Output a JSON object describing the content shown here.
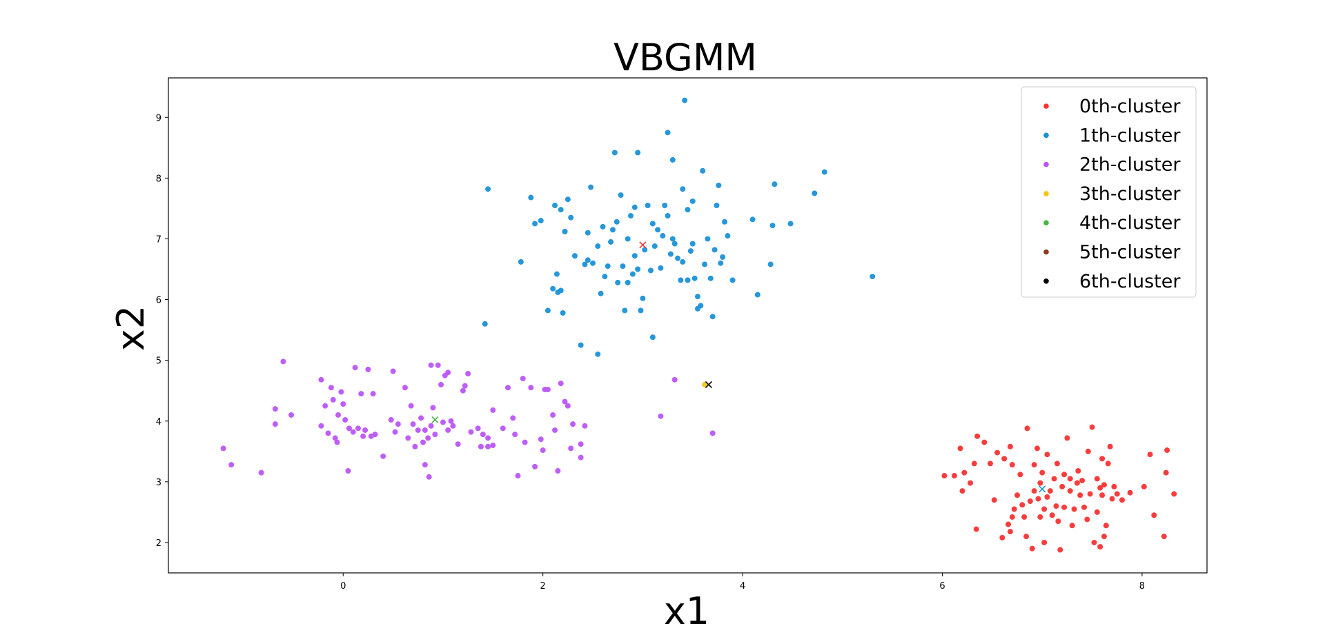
{
  "chart_data": {
    "type": "scatter",
    "title": "VBGMM",
    "xlabel": "x1",
    "ylabel": "x2",
    "xlim": [
      -1.75,
      8.65
    ],
    "ylim": [
      1.5,
      9.65
    ],
    "xticks": [
      0,
      2,
      4,
      6,
      8
    ],
    "yticks": [
      2,
      3,
      4,
      5,
      6,
      7,
      8,
      9
    ],
    "grid": false,
    "legend_position": "top-right",
    "series": [
      {
        "name": "0th-cluster",
        "color": "#f53333",
        "points": [
          [
            6.02,
            3.1
          ],
          [
            6.12,
            3.1
          ],
          [
            6.18,
            3.55
          ],
          [
            6.2,
            2.85
          ],
          [
            6.22,
            3.15
          ],
          [
            6.28,
            2.98
          ],
          [
            6.32,
            3.3
          ],
          [
            6.34,
            2.22
          ],
          [
            6.35,
            3.75
          ],
          [
            6.42,
            3.65
          ],
          [
            6.48,
            3.3
          ],
          [
            6.52,
            2.7
          ],
          [
            6.55,
            3.48
          ],
          [
            6.6,
            2.08
          ],
          [
            6.62,
            3.38
          ],
          [
            6.66,
            2.3
          ],
          [
            6.68,
            2.18
          ],
          [
            6.68,
            3.58
          ],
          [
            6.7,
            3.28
          ],
          [
            6.72,
            2.55
          ],
          [
            6.75,
            2.78
          ],
          [
            6.78,
            3.12
          ],
          [
            6.8,
            2.62
          ],
          [
            6.82,
            2.42
          ],
          [
            6.84,
            2.1
          ],
          [
            6.85,
            3.88
          ],
          [
            6.88,
            2.68
          ],
          [
            6.9,
            1.9
          ],
          [
            6.92,
            2.85
          ],
          [
            6.92,
            3.28
          ],
          [
            6.95,
            3.55
          ],
          [
            6.96,
            2.72
          ],
          [
            6.98,
            2.42
          ],
          [
            7.0,
            3.15
          ],
          [
            7.02,
            2.0
          ],
          [
            7.02,
            2.55
          ],
          [
            7.05,
            3.45
          ],
          [
            7.05,
            2.75
          ],
          [
            7.08,
            2.85
          ],
          [
            7.1,
            2.45
          ],
          [
            7.12,
            3.05
          ],
          [
            7.14,
            2.6
          ],
          [
            7.15,
            3.3
          ],
          [
            7.16,
            2.35
          ],
          [
            7.18,
            1.88
          ],
          [
            7.2,
            2.92
          ],
          [
            7.22,
            3.12
          ],
          [
            7.22,
            2.58
          ],
          [
            7.25,
            3.72
          ],
          [
            7.28,
            2.85
          ],
          [
            7.28,
            3.05
          ],
          [
            7.3,
            2.28
          ],
          [
            7.32,
            2.55
          ],
          [
            7.35,
            2.98
          ],
          [
            7.36,
            3.18
          ],
          [
            7.38,
            2.78
          ],
          [
            7.4,
            3.02
          ],
          [
            7.42,
            2.58
          ],
          [
            7.45,
            2.38
          ],
          [
            7.46,
            3.5
          ],
          [
            7.48,
            2.8
          ],
          [
            7.5,
            3.9
          ],
          [
            7.52,
            2.0
          ],
          [
            7.55,
            3.05
          ],
          [
            7.55,
            2.5
          ],
          [
            7.58,
            2.9
          ],
          [
            7.6,
            2.78
          ],
          [
            7.6,
            3.38
          ],
          [
            7.62,
            2.1
          ],
          [
            7.62,
            2.95
          ],
          [
            7.64,
            2.28
          ],
          [
            7.66,
            3.3
          ],
          [
            7.68,
            3.58
          ],
          [
            7.7,
            2.72
          ],
          [
            7.72,
            2.92
          ],
          [
            7.75,
            2.8
          ],
          [
            7.8,
            2.7
          ],
          [
            7.88,
            2.82
          ],
          [
            8.02,
            2.92
          ],
          [
            8.08,
            3.45
          ],
          [
            8.12,
            2.45
          ],
          [
            8.22,
            2.1
          ],
          [
            8.24,
            3.15
          ],
          [
            8.25,
            3.52
          ],
          [
            8.32,
            2.8
          ],
          [
            7.58,
            1.93
          ],
          [
            6.98,
            2.98
          ],
          [
            6.7,
            2.42
          ]
        ]
      },
      {
        "name": "1th-cluster",
        "color": "#1a91d6",
        "points": [
          [
            1.42,
            5.6
          ],
          [
            1.45,
            7.82
          ],
          [
            1.78,
            6.62
          ],
          [
            1.88,
            7.68
          ],
          [
            1.92,
            7.25
          ],
          [
            1.98,
            7.3
          ],
          [
            2.05,
            5.82
          ],
          [
            2.1,
            6.18
          ],
          [
            2.12,
            7.55
          ],
          [
            2.14,
            6.42
          ],
          [
            2.15,
            6.12
          ],
          [
            2.18,
            7.48
          ],
          [
            2.18,
            6.15
          ],
          [
            2.2,
            5.78
          ],
          [
            2.22,
            7.12
          ],
          [
            2.25,
            7.65
          ],
          [
            2.28,
            7.35
          ],
          [
            2.32,
            6.72
          ],
          [
            2.38,
            5.25
          ],
          [
            2.42,
            6.58
          ],
          [
            2.45,
            7.1
          ],
          [
            2.45,
            6.65
          ],
          [
            2.48,
            7.85
          ],
          [
            2.5,
            6.6
          ],
          [
            2.55,
            6.88
          ],
          [
            2.55,
            5.1
          ],
          [
            2.58,
            6.1
          ],
          [
            2.6,
            7.2
          ],
          [
            2.62,
            6.38
          ],
          [
            2.65,
            6.55
          ],
          [
            2.68,
            6.95
          ],
          [
            2.7,
            7.15
          ],
          [
            2.72,
            8.42
          ],
          [
            2.74,
            7.28
          ],
          [
            2.75,
            6.28
          ],
          [
            2.78,
            7.72
          ],
          [
            2.8,
            6.55
          ],
          [
            2.82,
            5.82
          ],
          [
            2.85,
            7.0
          ],
          [
            2.85,
            6.28
          ],
          [
            2.88,
            7.38
          ],
          [
            2.9,
            6.42
          ],
          [
            2.92,
            7.52
          ],
          [
            2.95,
            8.42
          ],
          [
            2.95,
            6.5
          ],
          [
            2.98,
            5.82
          ],
          [
            3.0,
            6.02
          ],
          [
            3.02,
            6.82
          ],
          [
            3.05,
            7.55
          ],
          [
            3.08,
            6.48
          ],
          [
            3.1,
            7.25
          ],
          [
            3.1,
            5.38
          ],
          [
            3.12,
            6.88
          ],
          [
            3.15,
            7.15
          ],
          [
            3.18,
            6.52
          ],
          [
            3.2,
            7.05
          ],
          [
            3.22,
            7.55
          ],
          [
            3.25,
            8.75
          ],
          [
            3.28,
            6.75
          ],
          [
            3.3,
            7.0
          ],
          [
            3.3,
            8.3
          ],
          [
            3.32,
            6.92
          ],
          [
            3.35,
            6.68
          ],
          [
            3.38,
            6.32
          ],
          [
            3.4,
            7.82
          ],
          [
            3.42,
            9.28
          ],
          [
            3.45,
            6.32
          ],
          [
            3.45,
            7.48
          ],
          [
            3.48,
            6.8
          ],
          [
            3.5,
            7.62
          ],
          [
            3.5,
            6.92
          ],
          [
            3.52,
            6.35
          ],
          [
            3.55,
            5.85
          ],
          [
            3.55,
            6.05
          ],
          [
            3.58,
            5.9
          ],
          [
            3.6,
            8.12
          ],
          [
            3.62,
            6.58
          ],
          [
            3.65,
            7.0
          ],
          [
            3.68,
            6.35
          ],
          [
            3.7,
            5.72
          ],
          [
            3.72,
            6.82
          ],
          [
            3.74,
            7.55
          ],
          [
            3.76,
            7.88
          ],
          [
            3.78,
            6.6
          ],
          [
            3.8,
            6.7
          ],
          [
            3.82,
            7.28
          ],
          [
            3.85,
            7.05
          ],
          [
            3.9,
            6.32
          ],
          [
            4.1,
            7.32
          ],
          [
            4.15,
            6.08
          ],
          [
            4.28,
            6.58
          ],
          [
            4.3,
            7.22
          ],
          [
            4.32,
            7.9
          ],
          [
            4.48,
            7.25
          ],
          [
            4.72,
            7.75
          ],
          [
            4.82,
            8.1
          ],
          [
            5.3,
            6.38
          ],
          [
            3.25,
            7.38
          ],
          [
            3.4,
            6.62
          ],
          [
            2.92,
            6.72
          ]
        ]
      },
      {
        "name": "2th-cluster",
        "color": "#bb55f7",
        "points": [
          [
            -1.2,
            3.55
          ],
          [
            -1.12,
            3.28
          ],
          [
            -0.82,
            3.15
          ],
          [
            -0.68,
            3.95
          ],
          [
            -0.68,
            4.2
          ],
          [
            -0.6,
            4.98
          ],
          [
            -0.52,
            4.1
          ],
          [
            -0.22,
            4.68
          ],
          [
            -0.22,
            3.92
          ],
          [
            -0.18,
            4.25
          ],
          [
            -0.15,
            3.8
          ],
          [
            -0.12,
            4.55
          ],
          [
            -0.1,
            4.35
          ],
          [
            -0.08,
            3.72
          ],
          [
            -0.06,
            3.65
          ],
          [
            -0.05,
            4.1
          ],
          [
            -0.02,
            4.48
          ],
          [
            0.0,
            4.28
          ],
          [
            0.02,
            4.02
          ],
          [
            0.05,
            3.18
          ],
          [
            0.06,
            3.88
          ],
          [
            0.1,
            3.82
          ],
          [
            0.12,
            4.88
          ],
          [
            0.15,
            3.88
          ],
          [
            0.18,
            4.45
          ],
          [
            0.2,
            3.75
          ],
          [
            0.22,
            3.85
          ],
          [
            0.25,
            4.85
          ],
          [
            0.28,
            3.75
          ],
          [
            0.3,
            4.45
          ],
          [
            0.32,
            3.78
          ],
          [
            0.4,
            3.42
          ],
          [
            0.48,
            4.02
          ],
          [
            0.5,
            4.82
          ],
          [
            0.52,
            3.82
          ],
          [
            0.55,
            3.95
          ],
          [
            0.62,
            4.55
          ],
          [
            0.65,
            3.72
          ],
          [
            0.68,
            4.25
          ],
          [
            0.7,
            3.95
          ],
          [
            0.72,
            3.58
          ],
          [
            0.75,
            3.85
          ],
          [
            0.78,
            4.05
          ],
          [
            0.8,
            3.65
          ],
          [
            0.82,
            3.28
          ],
          [
            0.82,
            3.85
          ],
          [
            0.85,
            3.72
          ],
          [
            0.86,
            3.08
          ],
          [
            0.88,
            4.92
          ],
          [
            0.88,
            3.92
          ],
          [
            0.9,
            4.22
          ],
          [
            0.92,
            3.78
          ],
          [
            0.95,
            4.92
          ],
          [
            0.98,
            4.6
          ],
          [
            1.0,
            3.98
          ],
          [
            1.02,
            4.75
          ],
          [
            1.05,
            3.85
          ],
          [
            1.05,
            4.8
          ],
          [
            1.08,
            4.0
          ],
          [
            1.1,
            3.92
          ],
          [
            1.15,
            3.62
          ],
          [
            1.2,
            4.5
          ],
          [
            1.22,
            4.58
          ],
          [
            1.25,
            4.78
          ],
          [
            1.28,
            3.82
          ],
          [
            1.35,
            3.88
          ],
          [
            1.38,
            3.58
          ],
          [
            1.4,
            3.78
          ],
          [
            1.45,
            3.72
          ],
          [
            1.5,
            4.18
          ],
          [
            1.5,
            3.6
          ],
          [
            1.6,
            3.88
          ],
          [
            1.65,
            4.55
          ],
          [
            1.7,
            4.05
          ],
          [
            1.72,
            3.78
          ],
          [
            1.75,
            3.1
          ],
          [
            1.8,
            4.7
          ],
          [
            1.82,
            3.65
          ],
          [
            1.88,
            4.55
          ],
          [
            1.92,
            3.25
          ],
          [
            1.98,
            3.7
          ],
          [
            2.0,
            3.52
          ],
          [
            2.02,
            4.52
          ],
          [
            2.05,
            4.52
          ],
          [
            2.1,
            4.1
          ],
          [
            2.12,
            3.85
          ],
          [
            2.15,
            3.18
          ],
          [
            2.18,
            4.62
          ],
          [
            2.22,
            4.32
          ],
          [
            2.25,
            4.25
          ],
          [
            2.28,
            3.55
          ],
          [
            2.3,
            3.95
          ],
          [
            2.38,
            3.4
          ],
          [
            2.38,
            3.62
          ],
          [
            2.42,
            3.92
          ],
          [
            3.32,
            4.68
          ],
          [
            3.18,
            4.08
          ],
          [
            3.7,
            3.8
          ],
          [
            1.45,
            3.58
          ]
        ]
      },
      {
        "name": "3th-cluster",
        "color": "#f5c518",
        "points": [
          [
            3.62,
            4.6
          ]
        ]
      },
      {
        "name": "4th-cluster",
        "color": "#44b544",
        "points": []
      },
      {
        "name": "5th-cluster",
        "color": "#8b3a1e",
        "points": []
      },
      {
        "name": "6th-cluster",
        "color": "#000000",
        "points": []
      }
    ],
    "centers": [
      {
        "x": 7.0,
        "y": 2.88,
        "color": "#1a91d6"
      },
      {
        "x": 3.0,
        "y": 6.9,
        "color": "#f53333"
      },
      {
        "x": 0.92,
        "y": 4.02,
        "color": "#44b544"
      },
      {
        "x": 3.66,
        "y": 4.6,
        "color": "#000000"
      }
    ]
  }
}
